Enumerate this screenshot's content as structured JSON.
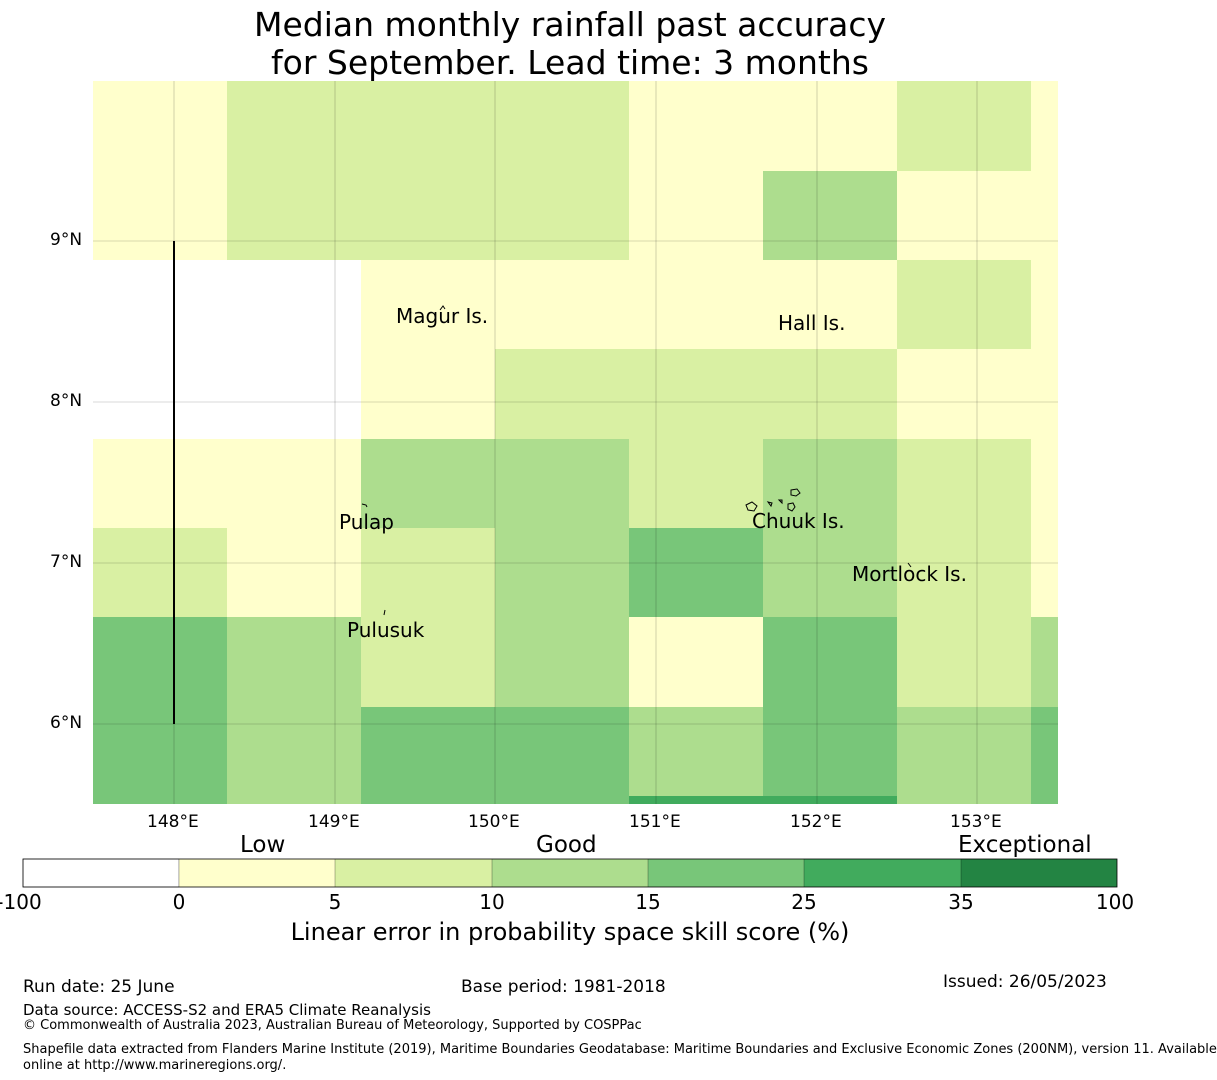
{
  "title": {
    "line1": "Median monthly rainfall past accuracy",
    "line2": "for September. Lead time: 3 months"
  },
  "map": {
    "lat_labels": [
      "9°N",
      "8°N",
      "7°N",
      "6°N"
    ],
    "lon_labels": [
      "148°E",
      "149°E",
      "150°E",
      "151°E",
      "152°E",
      "153°E"
    ],
    "places": [
      "Magur Is.",
      "Hall Is.",
      "Pulap",
      "Chuuk Is.",
      "Mortlock Is.",
      "Pulusuk"
    ]
  },
  "colorbar": {
    "categories": [
      "Low",
      "Good",
      "Exceptional"
    ],
    "ticks": [
      "-100",
      "0",
      "5",
      "10",
      "15",
      "25",
      "35",
      "100"
    ],
    "colors": [
      "#ffffff",
      "#ffffcc",
      "#d9f0a3",
      "#addd8e",
      "#78c679",
      "#41ab5d",
      "#238443"
    ],
    "label": "Linear error in probability space skill score (%)"
  },
  "footer": {
    "run_date": "Run date: 25 June",
    "base_period": "Base period: 1981-2018",
    "issued": "Issued: 26/05/2023",
    "data_source": "Data source: ACCESS-S2 and ERA5 Climate Reanalysis",
    "copyright": "© Commonwealth of Australia 2023, Australian Bureau of Meteorology, Supported by COSPPac",
    "shapefile_line1": "Shapefile data extracted from Flanders Marine Institute (2019), Maritime Boundaries Geodatabase: Maritime Boundaries and Exclusive Economic Zones (200NM), version 11. Available",
    "shapefile_line2": "online at http://www.marineregions.org/."
  }
}
